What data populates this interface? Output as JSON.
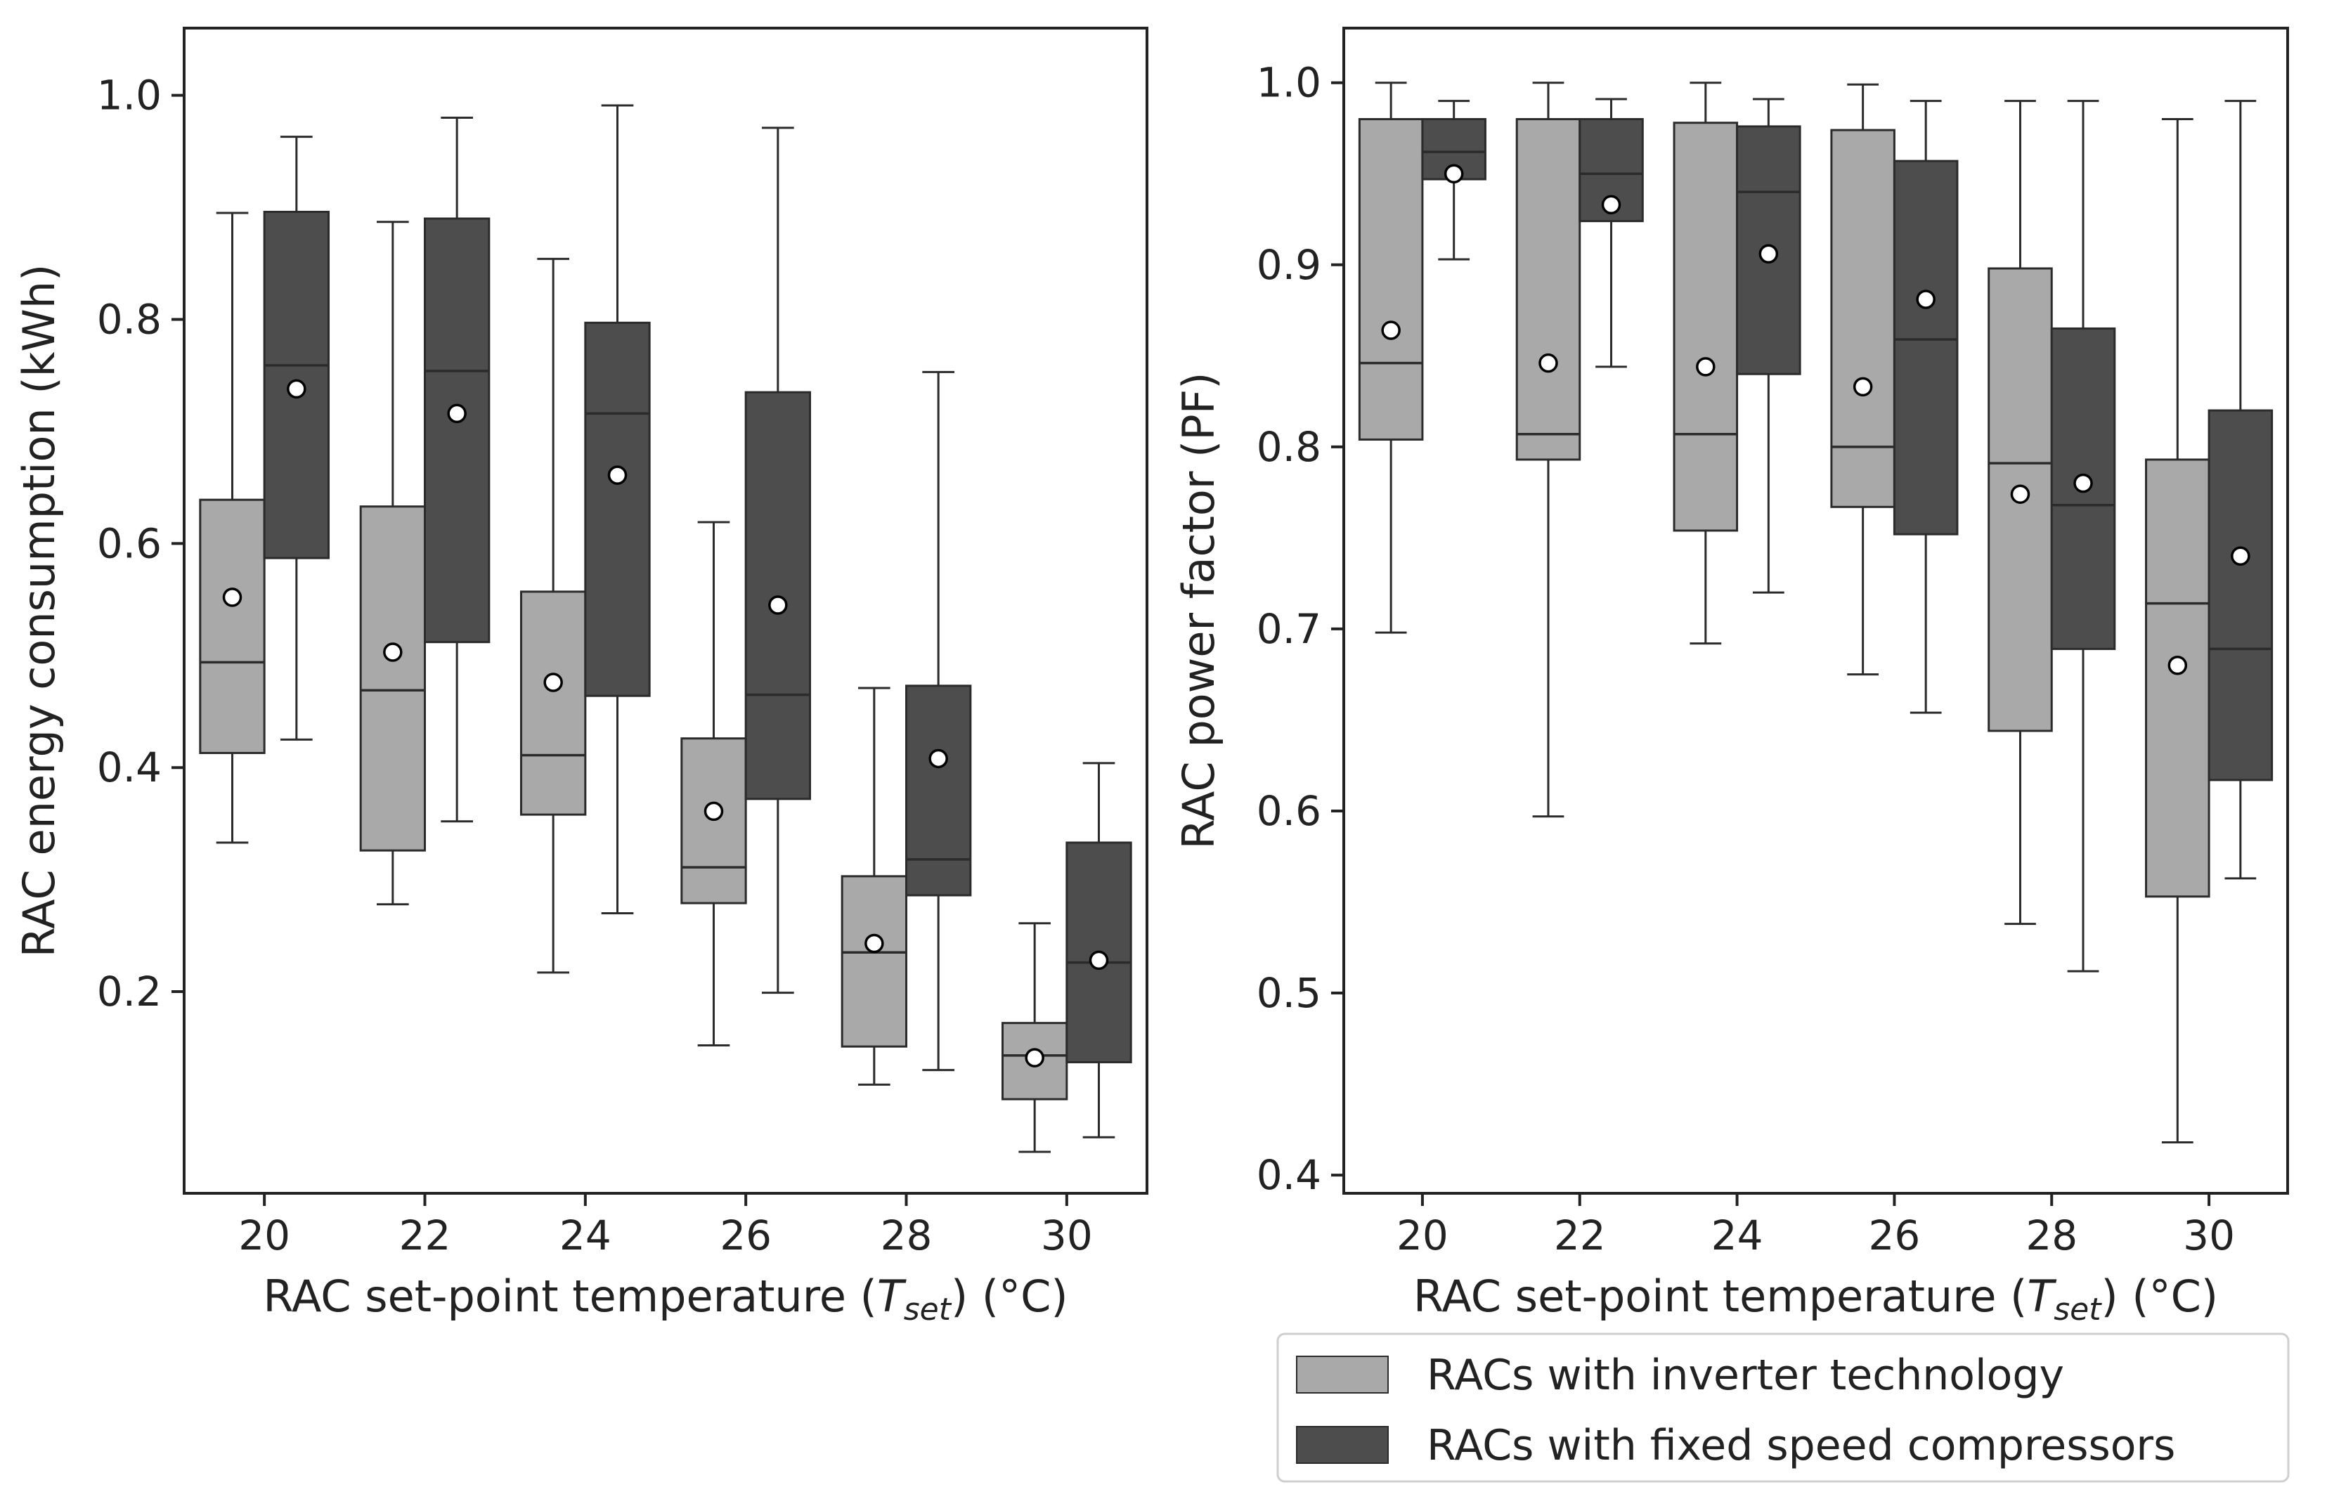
{
  "colors": {
    "inverter": "#a9a9a9",
    "fixed": "#4d4d4d",
    "line": "#2b2b2b",
    "mean_fill": "#ffffff"
  },
  "legend": {
    "inverter_label": "RACs with inverter technology",
    "fixed_label": "RACs with fixed speed compressors"
  },
  "chart_data": [
    {
      "type": "box",
      "xlabel_main": "RAC set-point temperature (",
      "xlabel_var": "T",
      "xlabel_sub": "set",
      "xlabel_end": ") (°C)",
      "ylabel": "RAC energy consumption (kWh)",
      "ylim": [
        0.02,
        1.06
      ],
      "yticks": [
        0.2,
        0.4,
        0.6,
        0.8,
        1.0
      ],
      "ytick_labels": [
        "0.2",
        "0.4",
        "0.6",
        "0.8",
        "1.0"
      ],
      "categories": [
        "20",
        "22",
        "24",
        "26",
        "28",
        "30"
      ],
      "series": [
        {
          "name": "RACs with inverter technology",
          "color_key": "inverter",
          "boxes": [
            {
              "whislo": 0.333,
              "q1": 0.413,
              "med": 0.494,
              "q3": 0.639,
              "whishi": 0.895,
              "mean": 0.552
            },
            {
              "whislo": 0.278,
              "q1": 0.326,
              "med": 0.469,
              "q3": 0.633,
              "whishi": 0.887,
              "mean": 0.503
            },
            {
              "whislo": 0.217,
              "q1": 0.358,
              "med": 0.411,
              "q3": 0.557,
              "whishi": 0.854,
              "mean": 0.476
            },
            {
              "whislo": 0.152,
              "q1": 0.279,
              "med": 0.311,
              "q3": 0.426,
              "whishi": 0.619,
              "mean": 0.361
            },
            {
              "whislo": 0.117,
              "q1": 0.151,
              "med": 0.235,
              "q3": 0.303,
              "whishi": 0.471,
              "mean": 0.243
            },
            {
              "whislo": 0.057,
              "q1": 0.104,
              "med": 0.143,
              "q3": 0.172,
              "whishi": 0.261,
              "mean": 0.141
            }
          ]
        },
        {
          "name": "RACs with fixed speed compressors",
          "color_key": "fixed",
          "boxes": [
            {
              "whislo": 0.425,
              "q1": 0.587,
              "med": 0.759,
              "q3": 0.896,
              "whishi": 0.963,
              "mean": 0.738
            },
            {
              "whislo": 0.352,
              "q1": 0.512,
              "med": 0.754,
              "q3": 0.89,
              "whishi": 0.98,
              "mean": 0.716
            },
            {
              "whislo": 0.27,
              "q1": 0.464,
              "med": 0.716,
              "q3": 0.797,
              "whishi": 0.991,
              "mean": 0.661
            },
            {
              "whislo": 0.199,
              "q1": 0.372,
              "med": 0.465,
              "q3": 0.735,
              "whishi": 0.971,
              "mean": 0.545
            },
            {
              "whislo": 0.13,
              "q1": 0.286,
              "med": 0.318,
              "q3": 0.473,
              "whishi": 0.753,
              "mean": 0.408
            },
            {
              "whislo": 0.07,
              "q1": 0.137,
              "med": 0.226,
              "q3": 0.333,
              "whishi": 0.404,
              "mean": 0.228
            }
          ]
        }
      ]
    },
    {
      "type": "box",
      "xlabel_main": "RAC set-point temperature (",
      "xlabel_var": "T",
      "xlabel_sub": "set",
      "xlabel_end": ") (°C)",
      "ylabel": "RAC power factor (PF)",
      "ylim": [
        0.39,
        1.03
      ],
      "yticks": [
        0.4,
        0.5,
        0.6,
        0.7,
        0.8,
        0.9,
        1.0
      ],
      "ytick_labels": [
        "0.4",
        "0.5",
        "0.6",
        "0.7",
        "0.8",
        "0.9",
        "1.0"
      ],
      "categories": [
        "20",
        "22",
        "24",
        "26",
        "28",
        "30"
      ],
      "series": [
        {
          "name": "RACs with inverter technology",
          "color_key": "inverter",
          "boxes": [
            {
              "whislo": 0.698,
              "q1": 0.804,
              "med": 0.846,
              "q3": 0.98,
              "whishi": 1.0,
              "mean": 0.864
            },
            {
              "whislo": 0.597,
              "q1": 0.793,
              "med": 0.807,
              "q3": 0.98,
              "whishi": 1.0,
              "mean": 0.846
            },
            {
              "whislo": 0.692,
              "q1": 0.754,
              "med": 0.807,
              "q3": 0.978,
              "whishi": 1.0,
              "mean": 0.844
            },
            {
              "whislo": 0.675,
              "q1": 0.767,
              "med": 0.8,
              "q3": 0.974,
              "whishi": 0.999,
              "mean": 0.833
            },
            {
              "whislo": 0.538,
              "q1": 0.644,
              "med": 0.791,
              "q3": 0.898,
              "whishi": 0.99,
              "mean": 0.774
            },
            {
              "whislo": 0.418,
              "q1": 0.553,
              "med": 0.714,
              "q3": 0.793,
              "whishi": 0.98,
              "mean": 0.68
            }
          ]
        },
        {
          "name": "RACs with fixed speed compressors",
          "color_key": "fixed",
          "boxes": [
            {
              "whislo": 0.903,
              "q1": 0.947,
              "med": 0.962,
              "q3": 0.98,
              "whishi": 0.99,
              "mean": 0.95
            },
            {
              "whislo": 0.844,
              "q1": 0.924,
              "med": 0.95,
              "q3": 0.98,
              "whishi": 0.991,
              "mean": 0.933
            },
            {
              "whislo": 0.72,
              "q1": 0.84,
              "med": 0.94,
              "q3": 0.976,
              "whishi": 0.991,
              "mean": 0.906
            },
            {
              "whislo": 0.654,
              "q1": 0.752,
              "med": 0.859,
              "q3": 0.957,
              "whishi": 0.99,
              "mean": 0.881
            },
            {
              "whislo": 0.512,
              "q1": 0.689,
              "med": 0.768,
              "q3": 0.865,
              "whishi": 0.99,
              "mean": 0.78
            },
            {
              "whislo": 0.563,
              "q1": 0.617,
              "med": 0.689,
              "q3": 0.82,
              "whishi": 0.99,
              "mean": 0.74
            }
          ]
        }
      ]
    }
  ]
}
